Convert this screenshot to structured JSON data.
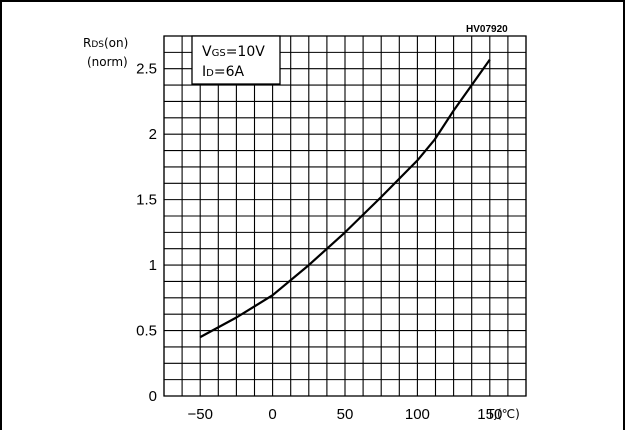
{
  "reference_code": "HV07920",
  "chart_data": {
    "type": "line",
    "ylabel": {
      "main": "R",
      "sub": "DS",
      "tail": "(on)",
      "line2": "(norm)"
    },
    "xlabel": {
      "main": "T",
      "sub": "J",
      "tail": "(℃)"
    },
    "conditions": [
      {
        "main": "V",
        "sub": "GS",
        "tail": "=10V"
      },
      {
        "main": "I",
        "sub": "D",
        "tail": "=6A"
      }
    ],
    "xlim": [
      -75,
      175
    ],
    "ylim": [
      0,
      2.75
    ],
    "x_ticks": [
      -50,
      0,
      50,
      100,
      150
    ],
    "x_tick_labels": [
      "−50",
      "0",
      "50",
      "100",
      "150"
    ],
    "y_ticks": [
      0,
      0.5,
      1,
      1.5,
      2,
      2.5
    ],
    "y_tick_labels": [
      "0",
      "0.5",
      "1",
      "1.5",
      "2",
      "2.5"
    ],
    "grid": true,
    "series": [
      {
        "x": [
          -50,
          -25,
          0,
          25,
          50,
          75,
          100,
          112,
          125,
          150
        ],
        "y": [
          0.45,
          0.6,
          0.77,
          1.0,
          1.25,
          1.52,
          1.8,
          1.96,
          2.18,
          2.57
        ]
      }
    ]
  }
}
